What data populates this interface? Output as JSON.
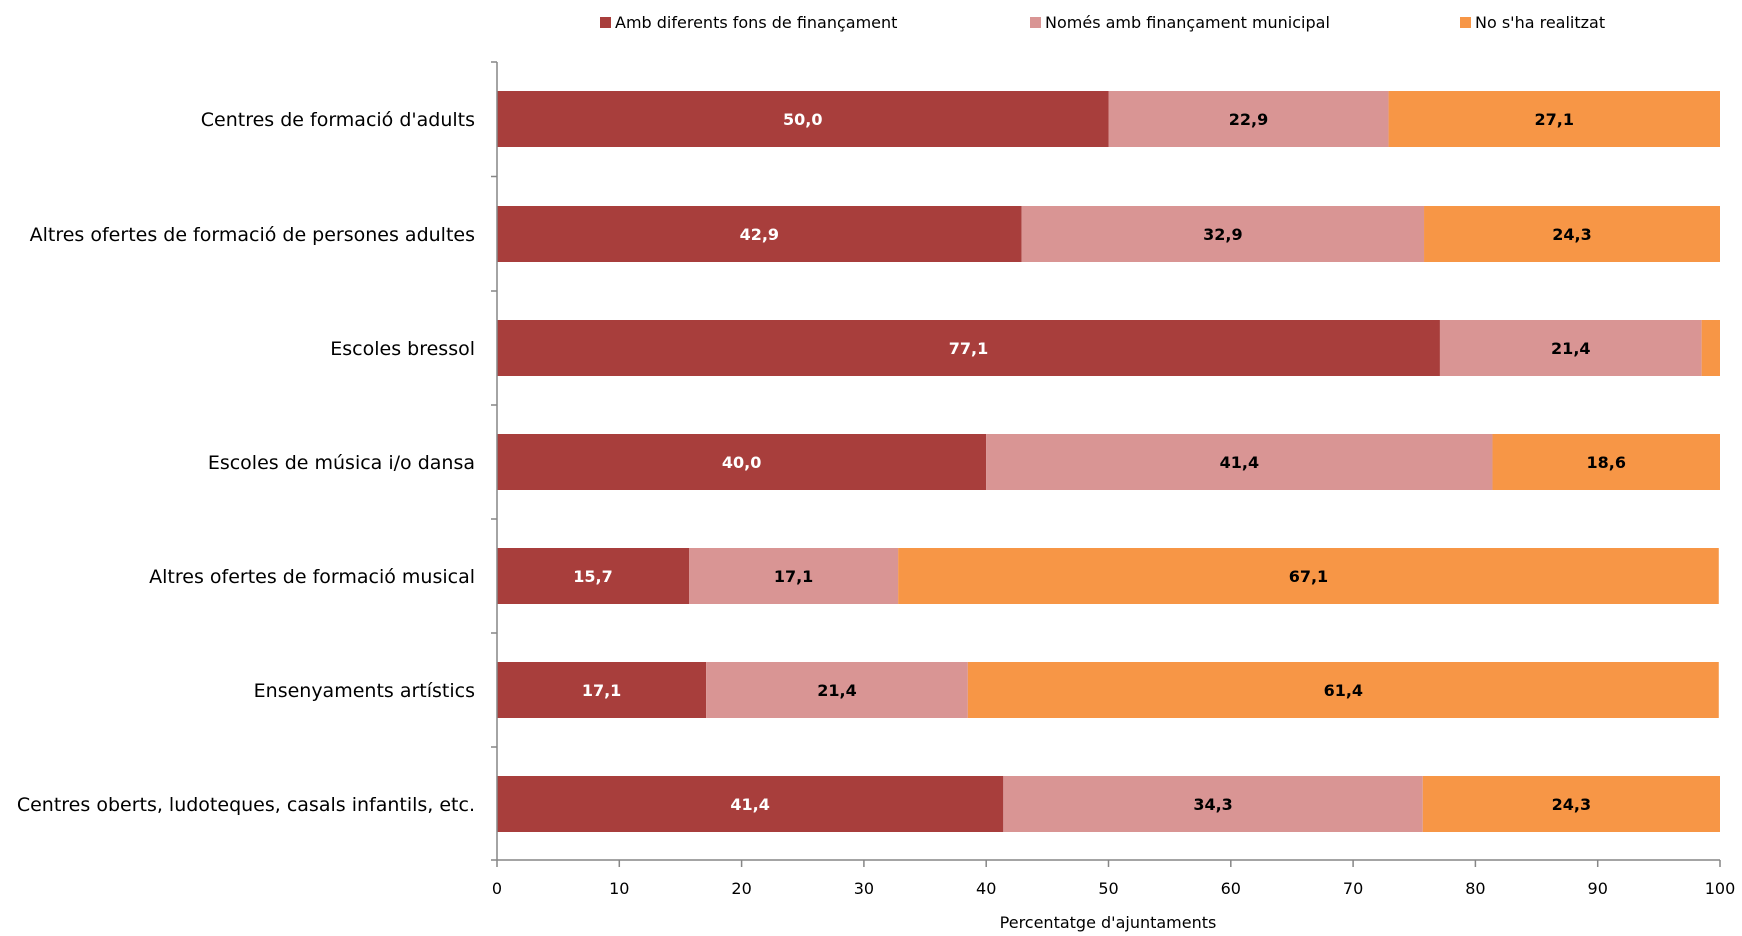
{
  "chart_data": {
    "type": "bar",
    "orientation": "horizontal",
    "stacked": true,
    "categories": [
      "Centres de formació d'adults",
      "Altres ofertes de formació de persones adultes",
      "Escoles bressol",
      "Escoles de música i/o dansa",
      "Altres ofertes de formació musical",
      "Ensenyaments artístics",
      "Centres oberts, ludoteques, casals infantils, etc."
    ],
    "series": [
      {
        "name": "Amb diferents fons de finançament",
        "color": "#A83E3C",
        "label_color": "#FFFFFF",
        "values": [
          50.0,
          42.9,
          77.1,
          40.0,
          15.7,
          17.1,
          41.4
        ],
        "labels": [
          "50,0",
          "42,9",
          "77,1",
          "40,0",
          "15,7",
          "17,1",
          "41,4"
        ]
      },
      {
        "name": "Només amb finançament municipal",
        "color": "#D99594",
        "label_color": "#000000",
        "values": [
          22.9,
          32.9,
          21.4,
          41.4,
          17.1,
          21.4,
          34.3
        ],
        "labels": [
          "22,9",
          "32,9",
          "21,4",
          "41,4",
          "17,1",
          "21,4",
          "34,3"
        ]
      },
      {
        "name": "No s'ha realitzat",
        "color": "#F79646",
        "label_color": "#000000",
        "values": [
          27.1,
          24.3,
          1.5,
          18.6,
          67.1,
          61.4,
          24.3
        ],
        "labels": [
          "27,1",
          "24,3",
          "",
          "18,6",
          "67,1",
          "61,4",
          "24,3"
        ]
      }
    ],
    "xlabel": "Percentatge d'ajuntaments",
    "ylabel": "",
    "xlim": [
      0,
      100
    ],
    "xticks": [
      "0",
      "10",
      "20",
      "30",
      "40",
      "50",
      "60",
      "70",
      "80",
      "90",
      "100"
    ],
    "grid": false,
    "legend_position": "top"
  }
}
